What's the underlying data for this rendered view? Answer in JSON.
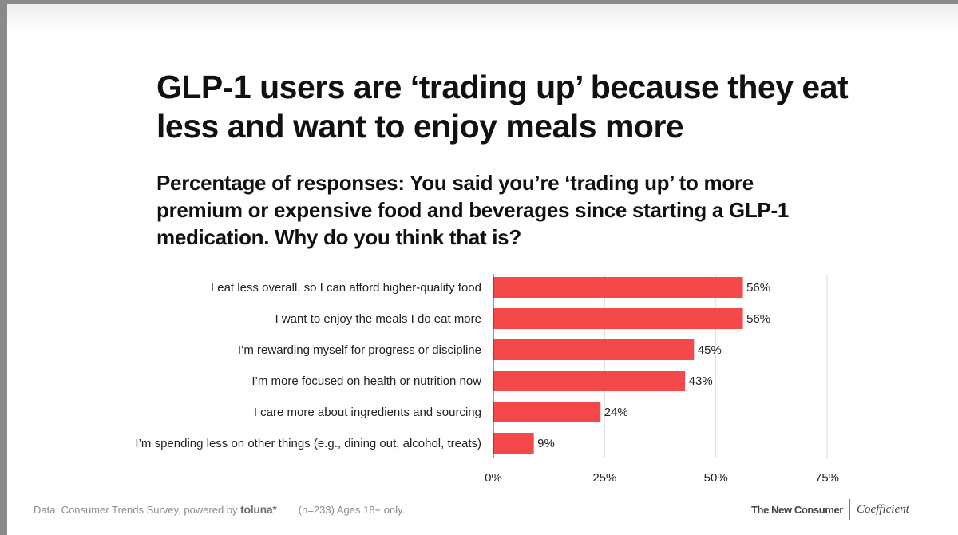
{
  "chart_data": {
    "type": "bar",
    "orientation": "horizontal",
    "title": "GLP-1 users are ‘trading up’ because they eat less and want to enjoy meals more",
    "subtitle": "Percentage of responses: You said you’re ‘trading up’ to more premium or expensive food and beverages since starting a GLP-1 medication. Why do you think that is?",
    "categories": [
      "I eat less overall, so I can afford higher-quality food",
      "I want to enjoy the meals I do eat more",
      "I’m rewarding myself for progress or discipline",
      "I’m more focused on health or nutrition now",
      "I care more about ingredients and sourcing",
      "I’m spending less on other things (e.g., dining out, alcohol, treats)"
    ],
    "values": [
      56,
      56,
      45,
      43,
      24,
      9
    ],
    "value_labels": [
      "56%",
      "56%",
      "45%",
      "43%",
      "24%",
      "9%"
    ],
    "xlim": [
      0,
      75
    ],
    "xticks": [
      0,
      25,
      50,
      75
    ],
    "xtick_labels": [
      "0%",
      "25%",
      "50%",
      "75%"
    ],
    "grid": true,
    "bar_color": "#f5484b",
    "gridline_color": "#dddddd",
    "xlabel": "",
    "ylabel": ""
  },
  "footer": {
    "source_prefix": "Data: Consumer Trends Survey, powered by",
    "source_brand": "toluna*",
    "note": "(n=233) Ages 18+ only."
  },
  "logos": {
    "left": "The New Consumer",
    "right": "Coefficient"
  }
}
